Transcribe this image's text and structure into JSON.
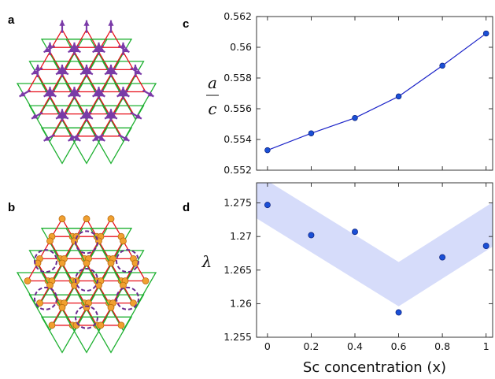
{
  "panel_labels": [
    "a",
    "b",
    "c",
    "d"
  ],
  "colors": {
    "kagome_up": "#e8111b",
    "kagome_down": "#1db030",
    "spin_arrow": "#7a3aa8",
    "site_marker": "#f0a030",
    "loop": "#6a2a90",
    "point": "#1a4fd6",
    "line": "#1a22c8",
    "band": "#d6dcfa"
  },
  "chart_data": [
    {
      "type": "line",
      "panel": "c",
      "x": [
        0,
        0.2,
        0.4,
        0.6,
        0.8,
        1
      ],
      "series": [
        {
          "values": [
            0.5533,
            0.5544,
            0.5554,
            0.5568,
            0.5588,
            0.5609
          ]
        }
      ],
      "ylabel_top": "a",
      "ylabel_bottom": "c",
      "ylim": [
        0.552,
        0.562
      ],
      "yticks": [
        "0.562",
        "0.56",
        "0.558",
        "0.556",
        "0.554",
        "0.552"
      ],
      "xlim": [
        -0.05,
        1.03
      ]
    },
    {
      "type": "scatter",
      "panel": "d",
      "x": [
        0,
        0.2,
        0.4,
        0.6,
        0.8,
        1
      ],
      "series": [
        {
          "values": [
            1.2747,
            1.2702,
            1.2707,
            1.2587,
            1.2669,
            1.2686
          ]
        }
      ],
      "guide_band": {
        "x": [
          -0.05,
          0.6,
          1.03
        ],
        "y": [
          1.276,
          1.2629,
          1.2718
        ],
        "half_width": 0.0033
      },
      "ylabel": "λ",
      "ylim": [
        1.255,
        1.278
      ],
      "yticks": [
        "1.275",
        "1.27",
        "1.265",
        "1.26",
        "1.255"
      ],
      "xticks": [
        "0",
        "0.2",
        "0.4",
        "0.6",
        "0.8",
        "1"
      ],
      "xlabel": "Sc concentration (x)",
      "xlim": [
        -0.05,
        1.03
      ]
    }
  ]
}
